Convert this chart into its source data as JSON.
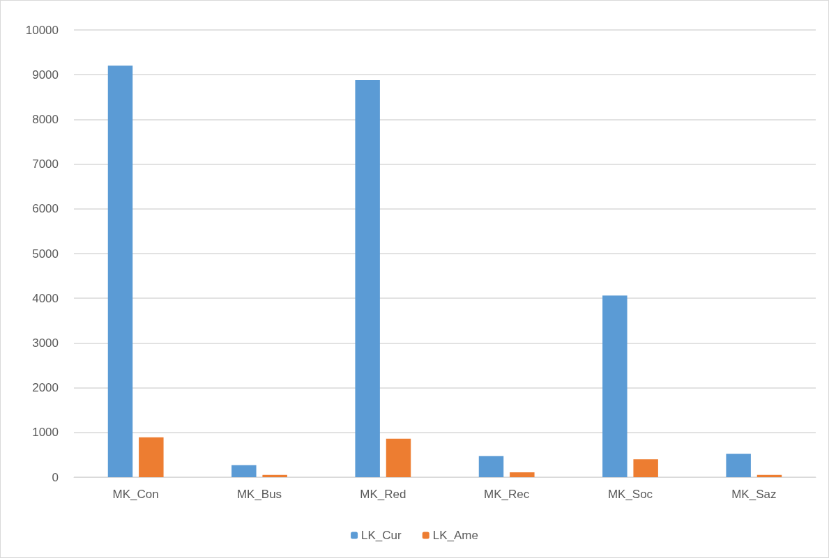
{
  "chart_data": {
    "type": "bar",
    "categories": [
      "MK_Con",
      "MK_Bus",
      "MK_Red",
      "MK_Rec",
      "MK_Soc",
      "MK_Saz"
    ],
    "series": [
      {
        "name": "LK_Cur",
        "color": "#5b9bd5",
        "values": [
          9200,
          270,
          8880,
          470,
          4060,
          520
        ]
      },
      {
        "name": "LK_Ame",
        "color": "#ed7d31",
        "values": [
          890,
          50,
          860,
          110,
          400,
          50
        ]
      }
    ],
    "ylim": [
      0,
      10000
    ],
    "yticks": [
      0,
      1000,
      2000,
      3000,
      4000,
      5000,
      6000,
      7000,
      8000,
      9000,
      10000
    ],
    "grid": "y",
    "legend": "bottom"
  }
}
